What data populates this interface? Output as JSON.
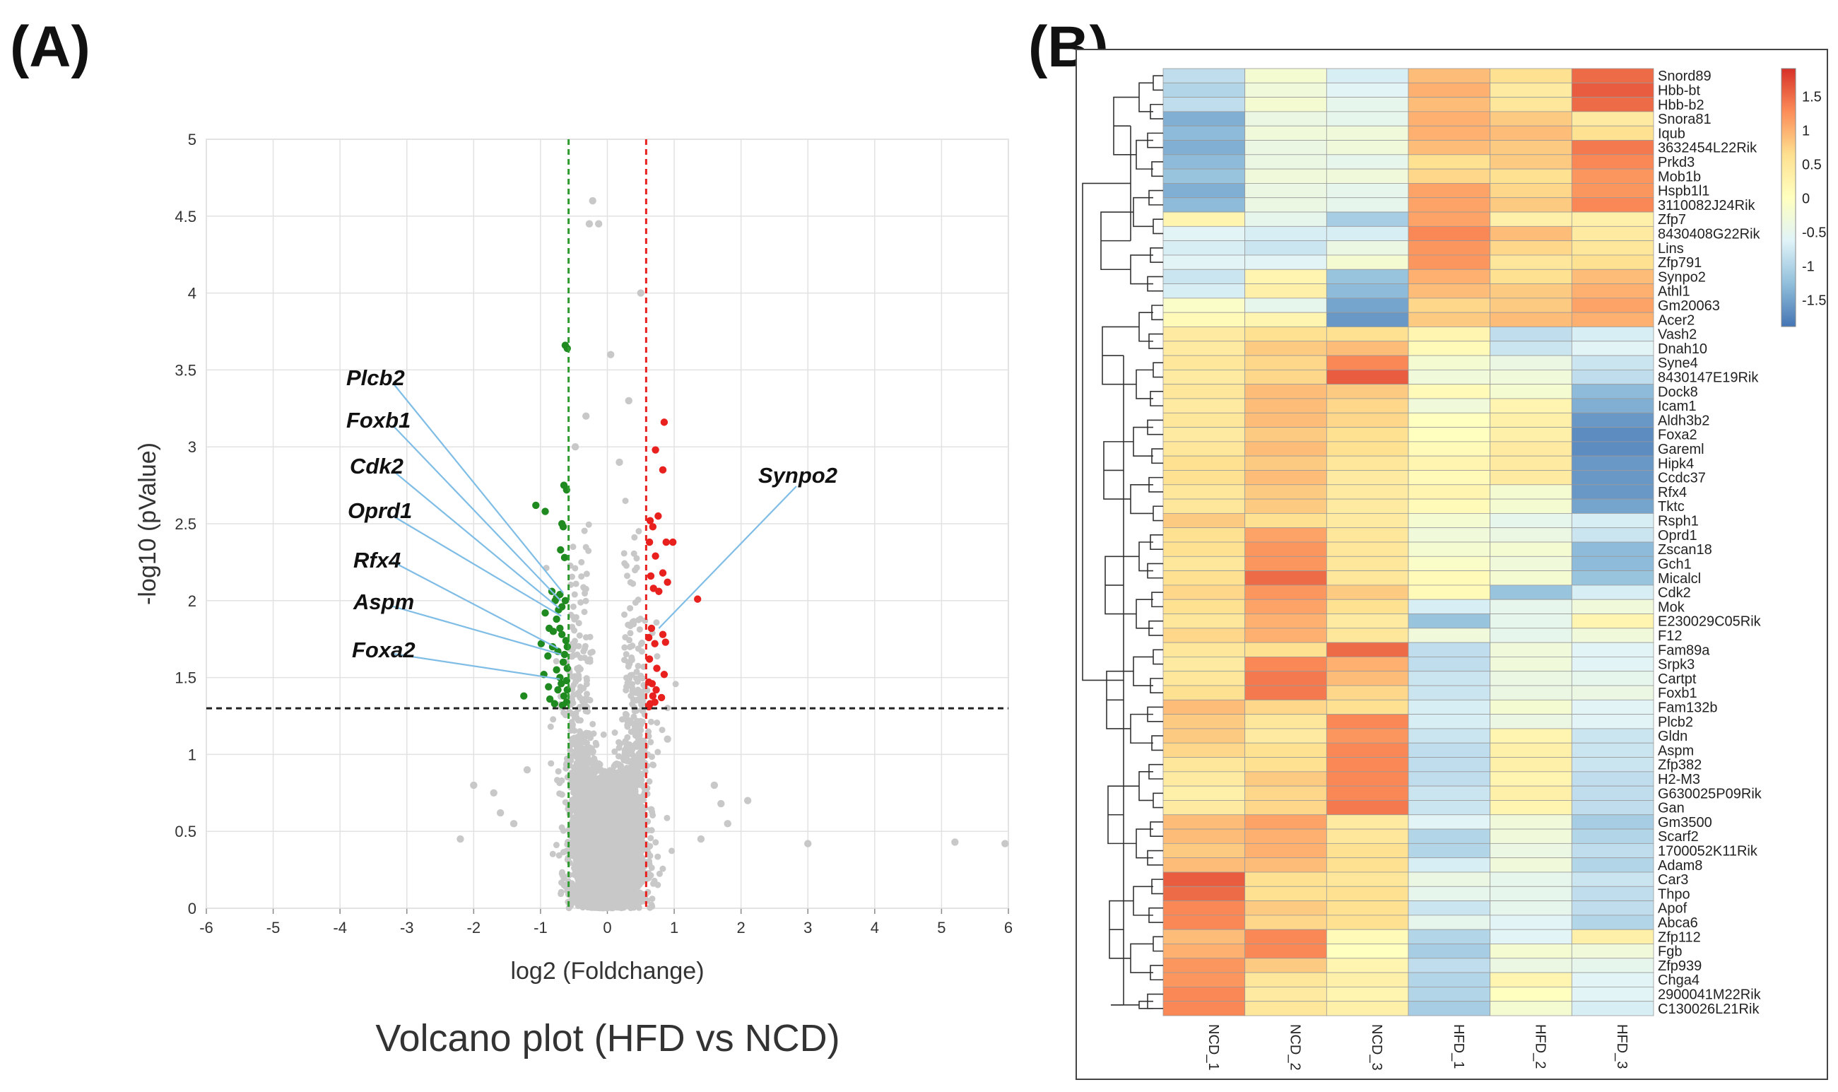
{
  "panel_labels": {
    "a": "(A)",
    "b": "(B)"
  },
  "chart_data": [
    {
      "type": "scatter",
      "panel": "(A)",
      "title": "Volcano plot (HFD vs NCD)",
      "xlabel": "log2 (Foldchange)",
      "ylabel": "-log10 (pValue)",
      "xlim": [
        -6,
        6
      ],
      "ylim": [
        0,
        5
      ],
      "xticks": [
        -6,
        -5,
        -4,
        -3,
        -2,
        -1,
        0,
        1,
        2,
        3,
        4,
        5,
        6
      ],
      "yticks": [
        0,
        0.5,
        1,
        1.5,
        2,
        2.5,
        3,
        3.5,
        4,
        4.5,
        5
      ],
      "grid": true,
      "thresholds": {
        "fc_down": -0.58,
        "fc_up": 0.58,
        "p": 1.3
      },
      "colors": {
        "down": "#1f8a1f",
        "up": "#e8201e",
        "ns": "#c8c8c8",
        "down_line": "#2e9b2e",
        "up_line": "#e8201e",
        "callout_line": "#7fbde6"
      },
      "series": [
        {
          "name": "down",
          "points": [
            [
              -0.63,
              3.66
            ],
            [
              -0.6,
              3.64
            ],
            [
              -1.07,
              2.62
            ],
            [
              -0.93,
              2.58
            ],
            [
              -0.65,
              2.75
            ],
            [
              -0.61,
              2.72
            ],
            [
              -0.68,
              2.5
            ],
            [
              -0.66,
              2.48
            ],
            [
              -0.7,
              2.33
            ],
            [
              -0.64,
              2.28
            ],
            [
              -0.83,
              2.06
            ],
            [
              -0.76,
              2.02
            ],
            [
              -0.71,
              2.04
            ],
            [
              -0.78,
              2.0
            ],
            [
              -0.93,
              1.92
            ],
            [
              -0.73,
              1.94
            ],
            [
              -0.68,
              1.96
            ],
            [
              -0.76,
              1.88
            ],
            [
              -0.87,
              1.82
            ],
            [
              -0.81,
              1.8
            ],
            [
              -0.71,
              1.82
            ],
            [
              -0.68,
              1.78
            ],
            [
              -0.99,
              1.72
            ],
            [
              -0.62,
              1.74
            ],
            [
              -0.82,
              1.7
            ],
            [
              -0.74,
              1.67
            ],
            [
              -0.89,
              1.64
            ],
            [
              -0.64,
              1.65
            ],
            [
              -0.66,
              1.6
            ],
            [
              -0.76,
              1.55
            ],
            [
              -0.95,
              1.52
            ],
            [
              -0.71,
              1.5
            ],
            [
              -0.69,
              1.46
            ],
            [
              -0.61,
              1.48
            ],
            [
              -0.88,
              1.44
            ],
            [
              -0.74,
              1.42
            ],
            [
              -1.25,
              1.38
            ],
            [
              -0.65,
              1.38
            ],
            [
              -0.86,
              1.36
            ],
            [
              -0.61,
              1.34
            ],
            [
              -0.79,
              1.33
            ],
            [
              -0.67,
              1.32
            ],
            [
              -0.6,
              1.42
            ],
            [
              -0.6,
              1.56
            ],
            [
              -0.63,
              2.0
            ],
            [
              -0.6,
              1.7
            ]
          ]
        },
        {
          "name": "up",
          "points": [
            [
              0.85,
              3.16
            ],
            [
              0.83,
              2.85
            ],
            [
              0.72,
              2.98
            ],
            [
              0.98,
              2.38
            ],
            [
              0.76,
              2.55
            ],
            [
              0.68,
              2.48
            ],
            [
              0.64,
              2.52
            ],
            [
              0.88,
              2.38
            ],
            [
              0.63,
              2.38
            ],
            [
              0.72,
              2.29
            ],
            [
              0.83,
              2.18
            ],
            [
              1.35,
              2.01
            ],
            [
              0.65,
              2.16
            ],
            [
              0.69,
              2.08
            ],
            [
              0.77,
              2.06
            ],
            [
              0.9,
              2.12
            ],
            [
              0.83,
              1.78
            ],
            [
              0.87,
              1.73
            ],
            [
              0.66,
              1.82
            ],
            [
              0.71,
              1.72
            ],
            [
              0.62,
              1.76
            ],
            [
              0.63,
              1.62
            ],
            [
              0.74,
              1.56
            ],
            [
              0.85,
              1.52
            ],
            [
              0.67,
              1.46
            ],
            [
              0.62,
              1.47
            ],
            [
              0.73,
              1.42
            ],
            [
              0.68,
              1.38
            ],
            [
              0.64,
              1.33
            ],
            [
              0.81,
              1.37
            ],
            [
              0.71,
              1.34
            ],
            [
              0.62,
              1.31
            ]
          ]
        },
        {
          "name": "ns_outliers",
          "points": [
            [
              -0.22,
              4.6
            ],
            [
              -0.27,
              4.45
            ],
            [
              -0.13,
              4.45
            ],
            [
              0.5,
              4.0
            ],
            [
              0.05,
              3.6
            ],
            [
              -0.48,
              3.0
            ],
            [
              -0.32,
              3.2
            ],
            [
              0.32,
              3.3
            ],
            [
              0.18,
              2.9
            ],
            [
              -2.0,
              0.8
            ],
            [
              -1.7,
              0.75
            ],
            [
              -1.2,
              0.9
            ],
            [
              1.6,
              0.8
            ],
            [
              1.8,
              0.55
            ],
            [
              3.0,
              0.42
            ],
            [
              5.2,
              0.43
            ],
            [
              5.95,
              0.42
            ],
            [
              -2.2,
              0.45
            ],
            [
              -1.4,
              0.55
            ],
            [
              1.4,
              0.45
            ],
            [
              2.1,
              0.7
            ],
            [
              0.9,
              1.1
            ],
            [
              -1.6,
              0.62
            ],
            [
              1.7,
              0.68
            ]
          ]
        }
      ],
      "annotations": [
        {
          "label": "Plcb2",
          "target": [
            -0.66,
            2.05
          ]
        },
        {
          "label": "Foxb1",
          "target": [
            -0.7,
            2.0
          ]
        },
        {
          "label": "Cdk2",
          "target": [
            -0.72,
            1.95
          ]
        },
        {
          "label": "Oprd1",
          "target": [
            -0.69,
            1.9
          ]
        },
        {
          "label": "Rfx4",
          "target": [
            -0.74,
            1.69
          ]
        },
        {
          "label": "Aspm",
          "target": [
            -0.69,
            1.65
          ]
        },
        {
          "label": "Foxa2",
          "target": [
            -0.71,
            1.49
          ]
        },
        {
          "label": "Synpo2",
          "target": [
            0.77,
            1.82
          ]
        }
      ]
    },
    {
      "type": "heatmap",
      "panel": "(B)",
      "columns": [
        "NCD_1",
        "NCD_2",
        "NCD_3",
        "HFD_1",
        "HFD_2",
        "HFD_3"
      ],
      "rows": [
        "Snord89",
        "Hbb-bt",
        "Hbb-b2",
        "Snora81",
        "Iqub",
        "3632454L22Rik",
        "Prkd3",
        "Mob1b",
        "Hspb1l1",
        "3110082J24Rik",
        "Zfp7",
        "8430408G22Rik",
        "Lins",
        "Zfp791",
        "Synpo2",
        "Athl1",
        "Gm20063",
        "Acer2",
        "Vash2",
        "Dnah10",
        "Syne4",
        "8430147E19Rik",
        "Dock8",
        "Icam1",
        "Aldh3b2",
        "Foxa2",
        "Gareml",
        "Hipk4",
        "Ccdc37",
        "Rfx4",
        "Tktc",
        "Rsph1",
        "Oprd1",
        "Zscan18",
        "Gch1",
        "Micalcl",
        "Cdk2",
        "Mok",
        "E230029C05Rik",
        "F12",
        "Fam89a",
        "Srpk3",
        "Cartpt",
        "Foxb1",
        "Fam132b",
        "Plcb2",
        "Gldn",
        "Aspm",
        "Zfp382",
        "H2-M3",
        "G630025P09Rik",
        "Gan",
        "Gm3500",
        "Scarf2",
        "1700052K11Rik",
        "Adam8",
        "Car3",
        "Thpo",
        "Apof",
        "Abca6",
        "Zfp112",
        "Fgb",
        "Zfp939",
        "Chga4",
        "2900041M22Rik",
        "C130026L21Rik"
      ],
      "values": [
        [
          -0.9,
          -0.2,
          -0.7,
          0.9,
          0.6,
          1.5
        ],
        [
          -1.0,
          -0.3,
          -0.6,
          1.0,
          0.4,
          1.6
        ],
        [
          -0.9,
          -0.2,
          -0.5,
          0.9,
          0.5,
          1.5
        ],
        [
          -1.4,
          -0.4,
          -0.5,
          1.0,
          0.8,
          0.4
        ],
        [
          -1.3,
          -0.3,
          -0.3,
          1.0,
          0.9,
          0.6
        ],
        [
          -1.4,
          -0.4,
          -0.3,
          0.9,
          0.8,
          1.4
        ],
        [
          -1.3,
          -0.4,
          -0.5,
          0.6,
          0.8,
          1.3
        ],
        [
          -1.2,
          -0.3,
          -0.3,
          0.7,
          0.6,
          1.2
        ],
        [
          -1.4,
          -0.4,
          -0.5,
          1.1,
          0.7,
          1.2
        ],
        [
          -1.3,
          -0.4,
          -0.5,
          1.1,
          0.8,
          1.3
        ],
        [
          0.2,
          -0.5,
          -1.1,
          1.1,
          0.3,
          0.3
        ],
        [
          -0.6,
          -0.7,
          -0.7,
          1.3,
          0.9,
          0.4
        ],
        [
          -0.7,
          -0.8,
          -0.4,
          1.2,
          0.7,
          0.5
        ],
        [
          -0.6,
          -0.6,
          -0.2,
          1.2,
          0.5,
          0.6
        ],
        [
          -0.8,
          0.2,
          -1.2,
          1.0,
          0.6,
          0.9
        ],
        [
          -0.7,
          0.3,
          -1.3,
          0.9,
          0.8,
          1.0
        ],
        [
          -0.1,
          -0.5,
          -1.5,
          0.7,
          0.8,
          1.1
        ],
        [
          0.1,
          0.2,
          -1.6,
          0.8,
          0.9,
          1.0
        ],
        [
          0.4,
          0.6,
          0.6,
          0.2,
          -0.9,
          -0.7
        ],
        [
          0.4,
          0.8,
          0.9,
          0.1,
          -0.8,
          -0.6
        ],
        [
          0.5,
          0.7,
          1.3,
          -0.2,
          -0.4,
          -0.8
        ],
        [
          0.4,
          0.7,
          1.6,
          -0.3,
          -0.3,
          -0.9
        ],
        [
          0.5,
          0.9,
          0.8,
          0.1,
          -0.2,
          -1.3
        ],
        [
          0.4,
          0.9,
          0.7,
          -0.3,
          0.2,
          -1.4
        ],
        [
          0.5,
          0.9,
          0.7,
          0.0,
          0.3,
          -1.6
        ],
        [
          0.4,
          0.8,
          0.6,
          0.0,
          0.3,
          -1.7
        ],
        [
          0.5,
          0.9,
          0.6,
          0.1,
          0.4,
          -1.7
        ],
        [
          0.6,
          0.8,
          0.5,
          0.2,
          0.4,
          -1.6
        ],
        [
          0.6,
          0.9,
          0.4,
          0.1,
          0.4,
          -1.6
        ],
        [
          0.5,
          0.8,
          0.4,
          0.2,
          -0.2,
          -1.6
        ],
        [
          0.5,
          0.8,
          0.4,
          0.1,
          -0.2,
          -1.5
        ],
        [
          0.8,
          0.6,
          0.4,
          -0.2,
          -0.5,
          -0.7
        ],
        [
          0.6,
          1.1,
          0.5,
          -0.3,
          -0.4,
          -0.8
        ],
        [
          0.6,
          1.2,
          0.5,
          -0.2,
          -0.2,
          -1.3
        ],
        [
          0.5,
          1.2,
          0.5,
          -0.1,
          -0.3,
          -1.3
        ],
        [
          0.6,
          1.5,
          0.5,
          0.1,
          -0.2,
          -1.2
        ],
        [
          0.7,
          1.2,
          0.8,
          0.1,
          -1.2,
          -0.7
        ],
        [
          0.6,
          1.1,
          0.6,
          -0.7,
          -0.5,
          -0.3
        ],
        [
          0.5,
          1.0,
          0.4,
          -1.2,
          -0.5,
          0.2
        ],
        [
          0.7,
          1.0,
          0.5,
          -0.3,
          -0.5,
          -0.3
        ],
        [
          0.5,
          0.6,
          1.5,
          -0.9,
          -0.3,
          -0.6
        ],
        [
          0.4,
          1.3,
          1.0,
          -0.9,
          -0.3,
          -0.6
        ],
        [
          0.5,
          1.4,
          0.9,
          -0.8,
          -0.4,
          -0.5
        ],
        [
          0.6,
          1.4,
          0.7,
          -0.8,
          -0.4,
          -0.4
        ],
        [
          0.9,
          0.7,
          0.6,
          -0.7,
          -0.2,
          -0.6
        ],
        [
          0.8,
          0.5,
          1.3,
          -0.7,
          -0.4,
          -0.6
        ],
        [
          0.8,
          0.4,
          1.2,
          -0.8,
          0.2,
          -0.8
        ],
        [
          0.7,
          0.6,
          1.3,
          -0.9,
          0.3,
          -0.8
        ],
        [
          0.5,
          0.6,
          1.3,
          -0.9,
          0.3,
          -0.8
        ],
        [
          0.4,
          0.8,
          1.3,
          -0.9,
          0.2,
          -0.9
        ],
        [
          0.3,
          0.7,
          1.3,
          -0.8,
          0.3,
          -0.9
        ],
        [
          0.4,
          0.7,
          1.4,
          -0.8,
          0.2,
          -0.9
        ],
        [
          0.9,
          1.1,
          0.4,
          -0.6,
          -0.3,
          -1.1
        ],
        [
          0.9,
          1.0,
          0.5,
          -1.0,
          -0.3,
          -1.0
        ],
        [
          0.8,
          1.0,
          0.6,
          -1.0,
          -0.4,
          -0.9
        ],
        [
          0.9,
          0.9,
          0.6,
          -0.7,
          -0.3,
          -1.0
        ],
        [
          1.6,
          0.6,
          0.5,
          -0.4,
          -0.5,
          -0.8
        ],
        [
          1.5,
          0.6,
          0.6,
          -0.5,
          -0.5,
          -0.9
        ],
        [
          1.3,
          0.8,
          0.6,
          -0.8,
          -0.5,
          -0.9
        ],
        [
          1.3,
          0.7,
          0.6,
          -0.5,
          -0.6,
          -1.0
        ],
        [
          0.9,
          1.3,
          0.1,
          -1.0,
          -0.6,
          0.3
        ],
        [
          1.0,
          1.3,
          0.0,
          -1.1,
          -0.2,
          -0.3
        ],
        [
          1.2,
          0.8,
          0.2,
          -0.9,
          -0.4,
          -0.5
        ],
        [
          1.2,
          0.5,
          0.3,
          -1.0,
          0.2,
          -0.6
        ],
        [
          1.3,
          0.4,
          0.2,
          -1.0,
          0.0,
          -0.6
        ],
        [
          1.3,
          0.5,
          0.3,
          -1.1,
          -0.2,
          -0.7
        ]
      ],
      "colorbar": {
        "min": -1.9,
        "max": 1.9,
        "ticks": [
          1.5,
          1,
          0.5,
          0,
          -0.5,
          -1,
          -1.5
        ]
      },
      "colormap": [
        "#4575b4",
        "#91bfdb",
        "#e0f3f8",
        "#ffffbf",
        "#fee090",
        "#fc8d59",
        "#d73027"
      ]
    }
  ]
}
